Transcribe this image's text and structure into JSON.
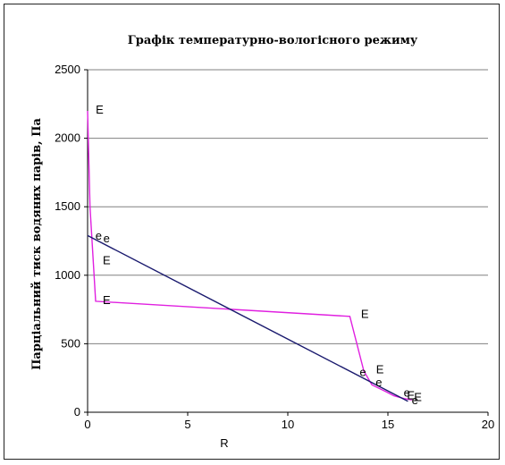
{
  "chart_data": {
    "type": "line",
    "title": "Графік температурно-вологісного режиму",
    "xlabel": "R",
    "ylabel": "Парціальний тиск водяних парів, Па",
    "xlim": [
      0,
      20
    ],
    "ylim": [
      0,
      2500
    ],
    "xticks": [
      "0",
      "5",
      "10",
      "15",
      "20"
    ],
    "yticks": [
      "0",
      "500",
      "1000",
      "1500",
      "2000",
      "2500"
    ],
    "grid": "horizontal",
    "series": [
      {
        "color": "#e020e0",
        "x": [
          0.0,
          0.12,
          0.4,
          13.1,
          13.8,
          14.2,
          14.9,
          15.3,
          15.8,
          16.2
        ],
        "y": [
          2200,
          1500,
          810,
          700,
          300,
          200,
          150,
          120,
          100,
          90
        ]
      },
      {
        "color": "#1a1a6e",
        "x": [
          0.0,
          16.0
        ],
        "y": [
          1290,
          80
        ]
      }
    ],
    "annotations": [
      {
        "text": "E",
        "x": 0.6,
        "y": 2180
      },
      {
        "text": "e",
        "x": 0.55,
        "y": 1260
      },
      {
        "text": "e",
        "x": 0.95,
        "y": 1240
      },
      {
        "text": "E",
        "x": 0.95,
        "y": 1080
      },
      {
        "text": "E",
        "x": 0.95,
        "y": 790
      },
      {
        "text": "E",
        "x": 13.85,
        "y": 690
      },
      {
        "text": "e",
        "x": 13.75,
        "y": 265
      },
      {
        "text": "E",
        "x": 14.6,
        "y": 285
      },
      {
        "text": "e",
        "x": 14.55,
        "y": 190
      },
      {
        "text": "e",
        "x": 15.95,
        "y": 115
      },
      {
        "text": "E",
        "x": 16.15,
        "y": 95
      },
      {
        "text": "E",
        "x": 16.5,
        "y": 80
      },
      {
        "text": "e",
        "x": 16.35,
        "y": 60
      }
    ]
  }
}
